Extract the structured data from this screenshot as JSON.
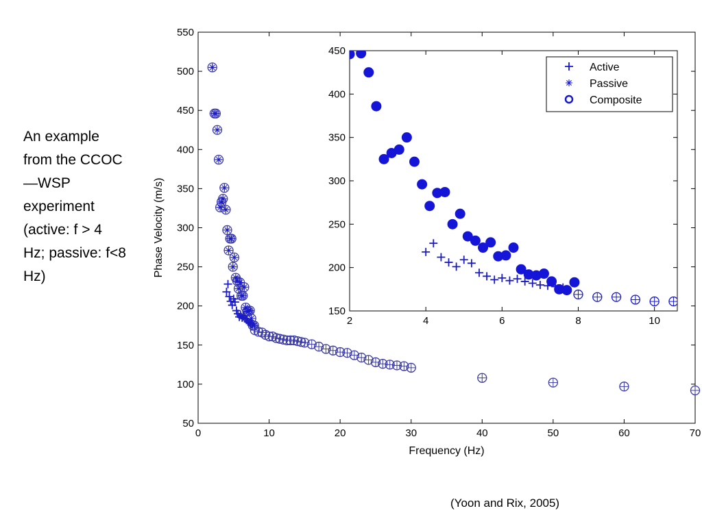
{
  "slide": {
    "description": "An example from the CCOC—WSP experiment (active: f > 4 Hz; passive: f<8 Hz)",
    "citation": "(Yoon and Rix, 2005)"
  },
  "chart_data": [
    {
      "type": "scatter",
      "xlabel": "Frequency (Hz)",
      "ylabel": "Phase Velocity (m/s)",
      "xlim": [
        0,
        70
      ],
      "ylim": [
        50,
        550
      ],
      "xticks": [
        0,
        10,
        20,
        30,
        40,
        50,
        60,
        70
      ],
      "yticks": [
        50,
        100,
        150,
        200,
        250,
        300,
        350,
        400,
        450,
        500,
        550
      ],
      "series": [
        {
          "name": "Composite",
          "marker": "circle-plus",
          "color": "#3a3aa8",
          "x": [
            2.0,
            2.3,
            2.5,
            2.7,
            2.9,
            3.1,
            3.3,
            3.5,
            3.7,
            3.9,
            4.1,
            4.3,
            4.5,
            4.7,
            4.9,
            5.1,
            5.3,
            5.5,
            5.7,
            5.9,
            6.1,
            6.3,
            6.5,
            6.7,
            6.9,
            7.1,
            7.3,
            7.5,
            7.7,
            7.9,
            8.0,
            8.5,
            9.0,
            9.5,
            10.0,
            10.5,
            11.0,
            11.5,
            12.0,
            12.5,
            13.0,
            13.5,
            14.0,
            14.5,
            15.0,
            16.0,
            17.0,
            18.0,
            19.0,
            20.0,
            21.0,
            22.0,
            23.0,
            24.0,
            25.0,
            26.0,
            27.0,
            28.0,
            29.0,
            30.0,
            40.0,
            50.0,
            60.0,
            70.0
          ],
          "y": [
            505,
            446,
            446,
            425,
            387,
            326,
            333,
            337,
            351,
            323,
            297,
            271,
            286,
            286,
            250,
            262,
            236,
            232,
            222,
            230,
            213,
            213,
            224,
            198,
            193,
            193,
            194,
            184,
            175,
            175,
            169,
            167,
            166,
            163,
            161,
            161,
            159,
            158,
            157,
            156,
            156,
            156,
            155,
            154,
            153,
            151,
            148,
            145,
            143,
            141,
            140,
            137,
            134,
            131,
            128,
            126,
            125,
            124,
            123,
            121,
            108,
            102,
            97,
            92
          ]
        },
        {
          "name": "Active",
          "marker": "plus",
          "color": "#1a1ac8",
          "x": [
            4.0,
            4.2,
            4.4,
            4.6,
            4.8,
            5.0,
            5.2,
            5.4,
            5.6,
            5.8,
            6.0,
            6.2,
            6.4,
            6.6,
            6.8,
            7.0,
            7.2,
            7.4,
            7.6
          ],
          "y": [
            218,
            228,
            212,
            206,
            201,
            209,
            205,
            194,
            190,
            186,
            188,
            185,
            187,
            184,
            182,
            180,
            179,
            178,
            177
          ]
        },
        {
          "name": "Passive",
          "marker": "asterisk",
          "color": "#1a1ac8",
          "x": [
            2.0,
            2.3,
            2.5,
            2.7,
            2.9,
            3.1,
            3.3,
            3.5,
            3.7,
            3.9,
            4.1,
            4.3,
            4.5,
            4.7,
            4.9,
            5.1,
            5.3,
            5.5,
            5.7,
            5.9,
            6.1,
            6.3,
            6.5,
            6.7,
            6.9,
            7.1,
            7.3,
            7.5,
            7.7,
            7.9
          ],
          "y": [
            505,
            446,
            446,
            425,
            387,
            326,
            333,
            337,
            351,
            323,
            297,
            271,
            286,
            286,
            250,
            262,
            236,
            232,
            222,
            230,
            213,
            213,
            224,
            198,
            193,
            193,
            194,
            184,
            175,
            175
          ]
        }
      ]
    },
    {
      "type": "scatter",
      "xlim": [
        2,
        10.6
      ],
      "ylim": [
        150,
        450
      ],
      "xticks": [
        2,
        4,
        6,
        8,
        10
      ],
      "yticks": [
        150,
        200,
        250,
        300,
        350,
        400,
        450
      ],
      "legend_position": "top-right",
      "series": [
        {
          "name": "Active",
          "marker": "plus",
          "color": "#1a1ac8",
          "x": [
            4.0,
            4.2,
            4.4,
            4.6,
            4.8,
            5.0,
            5.2,
            5.4,
            5.6,
            5.8,
            6.0,
            6.2,
            6.4,
            6.6,
            6.8,
            7.0,
            7.2,
            7.4,
            7.6
          ],
          "y": [
            218,
            228,
            212,
            206,
            201,
            209,
            205,
            194,
            190,
            186,
            188,
            185,
            187,
            184,
            182,
            180,
            179,
            178,
            177
          ]
        },
        {
          "name": "Passive",
          "marker": "filled-circle",
          "color": "#1515d8",
          "x": [
            2.0,
            2.3,
            2.5,
            2.7,
            2.9,
            3.1,
            3.3,
            3.5,
            3.7,
            3.9,
            4.1,
            4.3,
            4.5,
            4.7,
            4.9,
            5.1,
            5.3,
            5.5,
            5.7,
            5.9,
            6.1,
            6.3,
            6.5,
            6.7,
            6.9,
            7.1,
            7.3,
            7.5,
            7.7,
            7.9
          ],
          "y": [
            446,
            447,
            425,
            386,
            325,
            332,
            336,
            350,
            322,
            296,
            271,
            286,
            287,
            250,
            262,
            236,
            231,
            223,
            229,
            213,
            214,
            223,
            198,
            192,
            191,
            193,
            184,
            175,
            174,
            183
          ]
        },
        {
          "name": "Composite",
          "marker": "circle-plus",
          "color": "#1515d8",
          "x": [
            8.0,
            8.5,
            9.0,
            9.5,
            10.0,
            10.5
          ],
          "y": [
            169,
            166,
            166,
            163,
            161,
            161
          ]
        }
      ]
    }
  ]
}
